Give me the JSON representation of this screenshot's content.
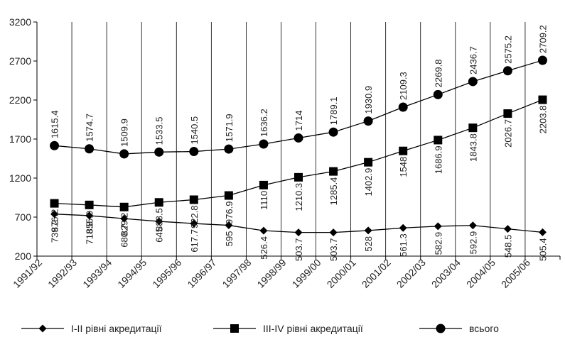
{
  "chart_data": {
    "type": "line",
    "title": "",
    "xlabel": "",
    "ylabel": "",
    "ylim": [
      200,
      3200
    ],
    "yticks": [
      200,
      700,
      1200,
      1700,
      2200,
      2700,
      3200
    ],
    "grid": "vertical",
    "legend_position": "bottom",
    "categories": [
      "1991/92",
      "1992/93",
      "1993/94",
      "1994/95",
      "1995/96",
      "1996/97",
      "1997/98",
      "1998/99",
      "1999/00",
      "2000/01",
      "2001/02",
      "2002/03",
      "2003/04",
      "2004/05",
      "2005/06"
    ],
    "series": [
      {
        "name": "I-II рівні акредитації",
        "marker": "diamond",
        "values": [
          739.2,
          718.8,
          680.7,
          645,
          617.7,
          595,
          526.4,
          503.7,
          503.7,
          528,
          561.3,
          582.9,
          592.9,
          548.5,
          505.4
        ],
        "labels": [
          "739.2",
          "718.8",
          "680.7",
          "645",
          "617.7",
          "595",
          "526.4",
          "503.7",
          "503.7",
          "528",
          "561.3",
          "582.9",
          "592.9",
          "548.5",
          "505.4"
        ]
      },
      {
        "name": "III-IV рівні акредитації",
        "marker": "square",
        "values": [
          876.2,
          855.9,
          829.2,
          888.5,
          922.8,
          976.9,
          1110,
          1210.3,
          1285.4,
          1402.9,
          1548,
          1686.9,
          1843.8,
          2026.7,
          2203.8
        ],
        "labels": [
          "876.2",
          "855.9",
          "829.2",
          "888.5",
          "922.8",
          "976.9",
          "1110",
          "1210.3",
          "1285.4",
          "1402.9",
          "1548",
          "1686.9",
          "1843.8",
          "2026.7",
          "2203.8"
        ]
      },
      {
        "name": "всього",
        "marker": "circle",
        "values": [
          1615.4,
          1574.7,
          1509.9,
          1533.5,
          1540.5,
          1571.9,
          1636.2,
          1714,
          1789.1,
          1930.9,
          2109.3,
          2269.8,
          2436.7,
          2575.2,
          2709.2
        ],
        "labels": [
          "1615.4",
          "1574.7",
          "1509.9",
          "1533.5",
          "1540.5",
          "1571.9",
          "1636.2",
          "1714",
          "1789.1",
          "1930.9",
          "2109.3",
          "2269.8",
          "2436.7",
          "2575.2",
          "2709.2"
        ]
      }
    ],
    "colors": {
      "line": "#000000",
      "grid": "#000000"
    }
  }
}
